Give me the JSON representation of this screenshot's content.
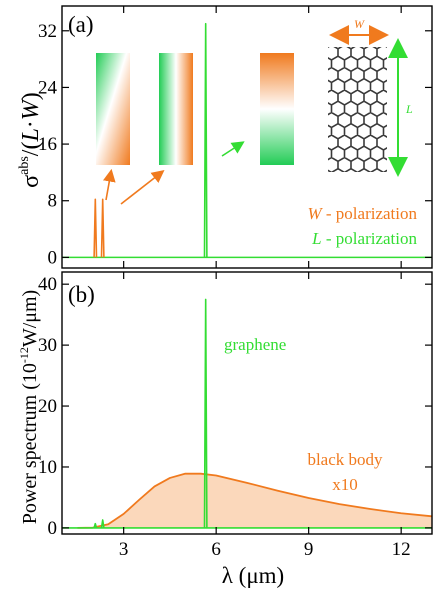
{
  "colors": {
    "orange": "#f07a1e",
    "orange_fill": "#fbd8bb",
    "green": "#33dd33",
    "ribbon_dark": "#3a3a3a"
  },
  "chart_data": [
    {
      "type": "line",
      "panel_label": "(a)",
      "ylabel": "σabs/(L·W)",
      "ylabel_parts": {
        "sigma": "σ",
        "sup": "abs",
        "slash": "/(",
        "L": "L",
        "dot": "·",
        "W": "W",
        "close": ")"
      },
      "xlim": [
        1,
        13
      ],
      "ylim": [
        -1.5,
        35.5
      ],
      "yticks": [
        0,
        8,
        16,
        24,
        32
      ],
      "yticklabels": [
        "0",
        "8",
        "16",
        "24",
        "32"
      ],
      "xticks": [
        3,
        6,
        9,
        12
      ],
      "grid": false,
      "series": [
        {
          "name": "W - polarization",
          "name_parts": {
            "sym": "W",
            "rest": " - polarization"
          },
          "color": "#f07a1e",
          "peaks": [
            {
              "x": 2.08,
              "y": 8.2,
              "width": 0.02
            },
            {
              "x": 2.32,
              "y": 8.2,
              "width": 0.02
            }
          ]
        },
        {
          "name": "L - polarization",
          "name_parts": {
            "sym": "L",
            "rest": " - polarization"
          },
          "color": "#33dd33",
          "peaks": [
            {
              "x": 5.66,
              "y": 33.0,
              "width": 0.035
            }
          ]
        }
      ],
      "inset": {
        "width_label": "W",
        "length_label": "L"
      }
    },
    {
      "type": "area",
      "panel_label": "(b)",
      "ylabel": "Power spectrum (10⁻¹²W/μm)",
      "ylabel_parts": {
        "main": "Power spectrum (10",
        "sup": "-12",
        "unit": "W/μm)"
      },
      "xlabel": "λ (μm)",
      "xlim": [
        1,
        13
      ],
      "ylim": [
        -1,
        42
      ],
      "yticks": [
        0,
        10,
        20,
        30,
        40
      ],
      "yticklabels": [
        "0",
        "10",
        "20",
        "30",
        "40"
      ],
      "xticks": [
        3,
        6,
        9,
        12
      ],
      "xticklabels": [
        "3",
        "6",
        "9",
        "12"
      ],
      "grid": false,
      "series": [
        {
          "name": "black body x10",
          "name_line1": "black body",
          "name_line2": "x10",
          "color": "#f07a1e",
          "points": [
            [
              1.5,
              0.0
            ],
            [
              2.0,
              0.04
            ],
            [
              2.5,
              0.6
            ],
            [
              3.0,
              2.3
            ],
            [
              3.5,
              4.6
            ],
            [
              4.0,
              6.8
            ],
            [
              4.5,
              8.2
            ],
            [
              5.0,
              8.9
            ],
            [
              5.5,
              8.9
            ],
            [
              6.0,
              8.6
            ],
            [
              7.0,
              7.4
            ],
            [
              8.0,
              6.1
            ],
            [
              9.0,
              4.9
            ],
            [
              10.0,
              3.9
            ],
            [
              11.0,
              3.1
            ],
            [
              12.0,
              2.4
            ],
            [
              13.0,
              1.9
            ]
          ]
        },
        {
          "name": "graphene",
          "color": "#33dd33",
          "peaks": [
            {
              "x": 2.08,
              "y": 0.7,
              "width": 0.02
            },
            {
              "x": 2.32,
              "y": 1.3,
              "width": 0.02
            },
            {
              "x": 5.66,
              "y": 37.5,
              "width": 0.035
            }
          ]
        }
      ]
    }
  ]
}
